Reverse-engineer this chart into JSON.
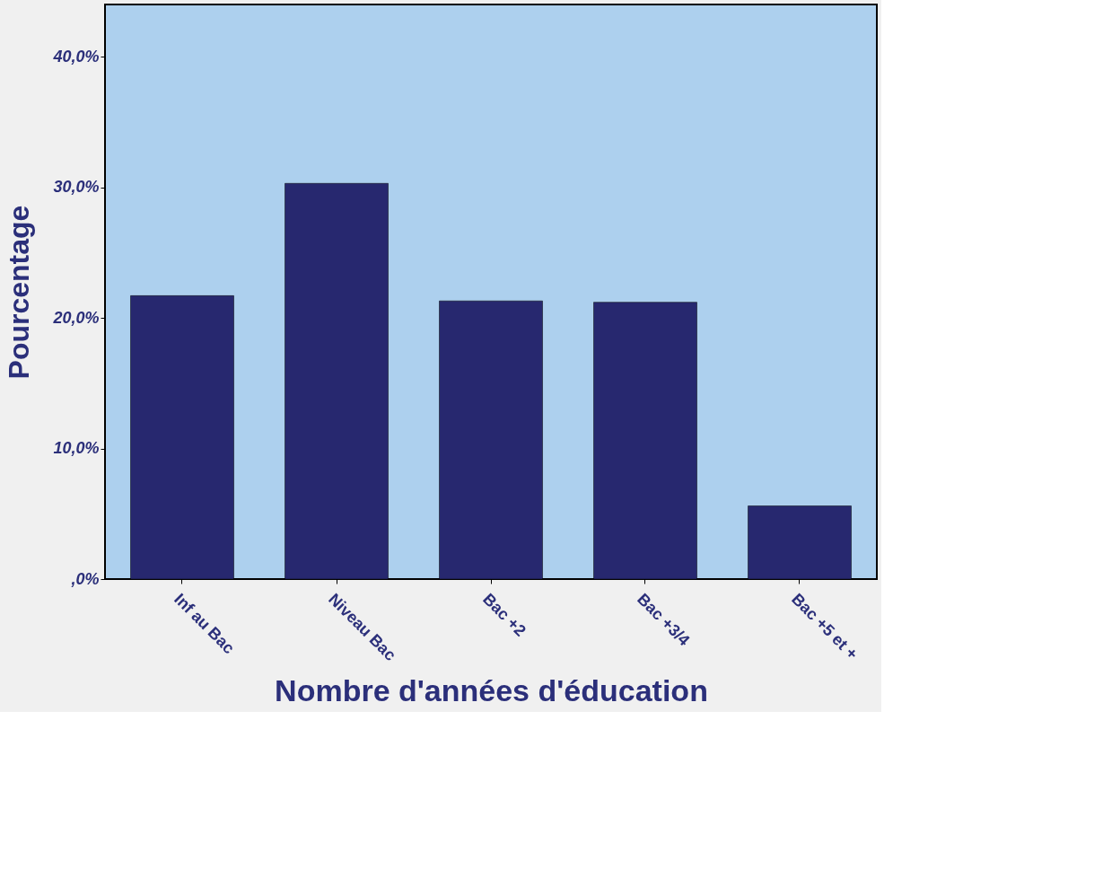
{
  "chart_data": {
    "type": "bar",
    "xlabel": "Nombre d'années d'éducation",
    "ylabel": "Pourcentage",
    "categories": [
      "Inf au Bac",
      "Niveau Bac",
      "Bac +2",
      "Bac +3/4",
      "Bac +5 et +"
    ],
    "values": [
      21.7,
      30.3,
      21.3,
      21.2,
      5.6
    ],
    "color": "#27286f",
    "ylim": [
      0,
      44
    ],
    "yticks": [
      {
        "value": 0,
        "label": ",0%"
      },
      {
        "value": 10,
        "label": "10,0%"
      },
      {
        "value": 20,
        "label": "20,0%"
      },
      {
        "value": 30,
        "label": "30,0%"
      },
      {
        "value": 40,
        "label": "40,0%"
      }
    ],
    "grid": false
  }
}
